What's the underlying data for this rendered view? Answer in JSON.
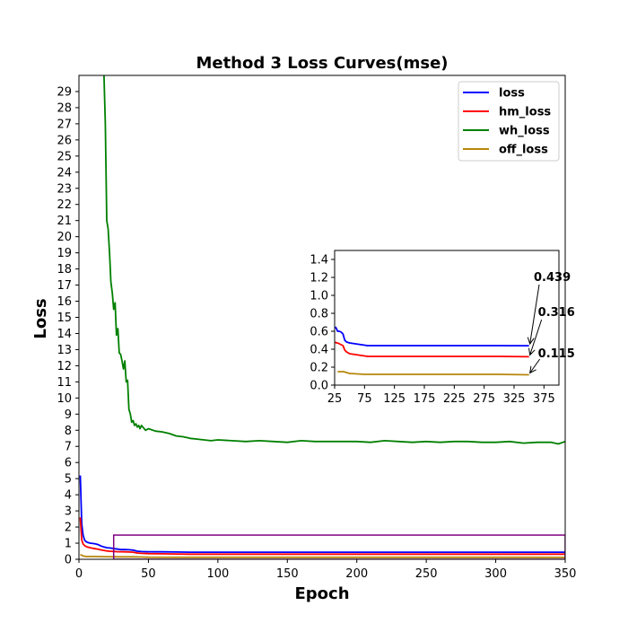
{
  "chart_data": {
    "type": "line",
    "title": "Method 3 Loss Curves(mse)",
    "xlabel": "Epoch",
    "ylabel": "Loss",
    "xlim": [
      0,
      350
    ],
    "ylim": [
      0,
      30
    ],
    "xticks": [
      0,
      50,
      100,
      150,
      200,
      250,
      300,
      350
    ],
    "yticks": [
      0,
      1,
      2,
      3,
      4,
      5,
      6,
      7,
      8,
      9,
      10,
      11,
      12,
      13,
      14,
      15,
      16,
      17,
      18,
      19,
      20,
      21,
      22,
      23,
      24,
      25,
      26,
      27,
      28,
      29
    ],
    "legend_position": "top-right",
    "series": [
      {
        "name": "loss",
        "color": "#0000ff",
        "x": [
          1,
          2,
          3,
          4,
          5,
          6,
          8,
          10,
          12,
          14,
          16,
          18,
          20,
          22,
          24,
          26,
          28,
          30,
          33,
          36,
          39,
          42,
          45,
          50,
          60,
          70,
          80,
          90,
          100,
          120,
          150,
          200,
          250,
          300,
          350
        ],
        "y": [
          5.2,
          2.2,
          1.5,
          1.2,
          1.1,
          1.05,
          1.0,
          0.98,
          0.95,
          0.9,
          0.82,
          0.76,
          0.72,
          0.7,
          0.68,
          0.65,
          0.63,
          0.6,
          0.6,
          0.59,
          0.57,
          0.5,
          0.48,
          0.47,
          0.46,
          0.45,
          0.44,
          0.44,
          0.44,
          0.44,
          0.44,
          0.44,
          0.44,
          0.44,
          0.439
        ]
      },
      {
        "name": "hm_loss",
        "color": "#ff0000",
        "x": [
          1,
          2,
          3,
          4,
          5,
          6,
          8,
          10,
          12,
          14,
          16,
          18,
          20,
          22,
          24,
          26,
          28,
          30,
          33,
          36,
          39,
          42,
          45,
          50,
          60,
          70,
          80,
          90,
          100,
          120,
          150,
          200,
          250,
          300,
          350
        ],
        "y": [
          2.6,
          1.2,
          0.95,
          0.85,
          0.8,
          0.76,
          0.72,
          0.68,
          0.65,
          0.62,
          0.58,
          0.55,
          0.52,
          0.5,
          0.49,
          0.48,
          0.47,
          0.47,
          0.46,
          0.45,
          0.44,
          0.39,
          0.37,
          0.35,
          0.34,
          0.33,
          0.32,
          0.32,
          0.32,
          0.32,
          0.32,
          0.32,
          0.32,
          0.32,
          0.316
        ]
      },
      {
        "name": "wh_loss",
        "color": "#008000",
        "x": [
          18,
          19,
          20,
          21,
          22,
          23,
          24,
          25,
          26,
          27,
          28,
          29,
          30,
          31,
          32,
          33,
          34,
          35,
          36,
          37,
          38,
          39,
          40,
          41,
          42,
          43,
          44,
          45,
          46,
          48,
          50,
          55,
          60,
          65,
          70,
          75,
          80,
          85,
          90,
          95,
          100,
          110,
          120,
          130,
          140,
          150,
          160,
          170,
          180,
          190,
          200,
          210,
          220,
          230,
          240,
          250,
          260,
          270,
          280,
          290,
          300,
          310,
          320,
          330,
          340,
          345,
          350
        ],
        "y": [
          30,
          27,
          21,
          20.5,
          19,
          17.2,
          16.5,
          15.5,
          15.9,
          13.9,
          14.3,
          12.8,
          12.7,
          12.3,
          11.8,
          12.3,
          11,
          11.1,
          9.3,
          9,
          8.5,
          8.6,
          8.3,
          8.4,
          8.2,
          8.3,
          8.1,
          8.3,
          8.2,
          8.0,
          8.1,
          7.95,
          7.9,
          7.8,
          7.65,
          7.6,
          7.5,
          7.45,
          7.4,
          7.35,
          7.4,
          7.35,
          7.3,
          7.35,
          7.3,
          7.25,
          7.35,
          7.3,
          7.3,
          7.3,
          7.3,
          7.25,
          7.35,
          7.3,
          7.25,
          7.3,
          7.25,
          7.3,
          7.3,
          7.25,
          7.25,
          7.3,
          7.2,
          7.25,
          7.25,
          7.15,
          7.3
        ]
      },
      {
        "name": "off_loss",
        "color": "#b8860b",
        "x": [
          1,
          2,
          3,
          5,
          10,
          20,
          30,
          40,
          45,
          50,
          75,
          100,
          150,
          200,
          250,
          300,
          350
        ],
        "y": [
          0.3,
          0.25,
          0.2,
          0.18,
          0.17,
          0.16,
          0.15,
          0.15,
          0.14,
          0.13,
          0.12,
          0.12,
          0.12,
          0.12,
          0.12,
          0.12,
          0.115
        ]
      }
    ],
    "highlight_box": {
      "color": "#800080",
      "x_range": [
        25,
        350
      ],
      "y_range": [
        0,
        1.5
      ]
    },
    "inset": {
      "xlim": [
        25,
        400
      ],
      "ylim": [
        0,
        1.5
      ],
      "xticks": [
        25,
        75,
        125,
        175,
        225,
        275,
        325,
        375
      ],
      "yticks": [
        0.0,
        0.2,
        0.4,
        0.6,
        0.8,
        1.0,
        1.2,
        1.4
      ],
      "ytick_labels": [
        "0.0",
        "0.2",
        "0.4",
        "0.6",
        "0.8",
        "1.0",
        "1.2",
        "1.4"
      ],
      "annotations": [
        {
          "text": "0.439",
          "x": 350,
          "y": 0.439,
          "text_x": 361,
          "text_y": 1.2
        },
        {
          "text": "0.316",
          "x": 350,
          "y": 0.316,
          "text_x": 365,
          "text_y": 0.81
        },
        {
          "text": "0.115",
          "x": 350,
          "y": 0.115,
          "text_x": 365,
          "text_y": 0.35
        }
      ]
    }
  }
}
